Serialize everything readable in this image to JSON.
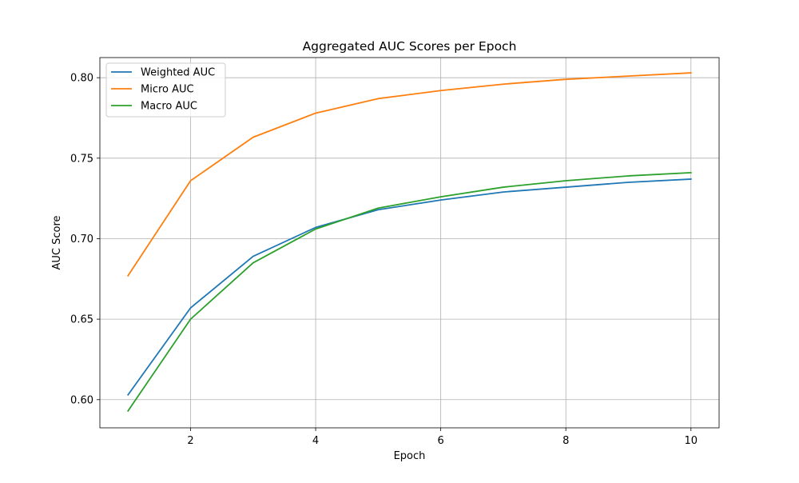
{
  "chart_data": {
    "type": "line",
    "title": "Aggregated AUC Scores per Epoch",
    "xlabel": "Epoch",
    "ylabel": "AUC Score",
    "xlim": [
      0.55,
      10.45
    ],
    "ylim": [
      0.5825,
      0.8125
    ],
    "xticks": [
      2,
      4,
      6,
      8,
      10
    ],
    "xtick_labels": [
      "2",
      "4",
      "6",
      "8",
      "10"
    ],
    "yticks": [
      0.6,
      0.65,
      0.7,
      0.75,
      0.8
    ],
    "ytick_labels": [
      "0.60",
      "0.65",
      "0.70",
      "0.75",
      "0.80"
    ],
    "grid": true,
    "legend_position": "top-left",
    "x": [
      1,
      2,
      3,
      4,
      5,
      6,
      7,
      8,
      9,
      10
    ],
    "series": [
      {
        "name": "Weighted AUC",
        "color": "#1f77b4",
        "values": [
          0.603,
          0.657,
          0.689,
          0.707,
          0.718,
          0.724,
          0.729,
          0.732,
          0.735,
          0.737
        ]
      },
      {
        "name": "Micro AUC",
        "color": "#ff7f0e",
        "values": [
          0.677,
          0.736,
          0.763,
          0.778,
          0.787,
          0.792,
          0.796,
          0.799,
          0.801,
          0.803
        ]
      },
      {
        "name": "Macro AUC",
        "color": "#2ca02c",
        "values": [
          0.593,
          0.65,
          0.685,
          0.706,
          0.719,
          0.726,
          0.732,
          0.736,
          0.739,
          0.741
        ]
      }
    ]
  }
}
